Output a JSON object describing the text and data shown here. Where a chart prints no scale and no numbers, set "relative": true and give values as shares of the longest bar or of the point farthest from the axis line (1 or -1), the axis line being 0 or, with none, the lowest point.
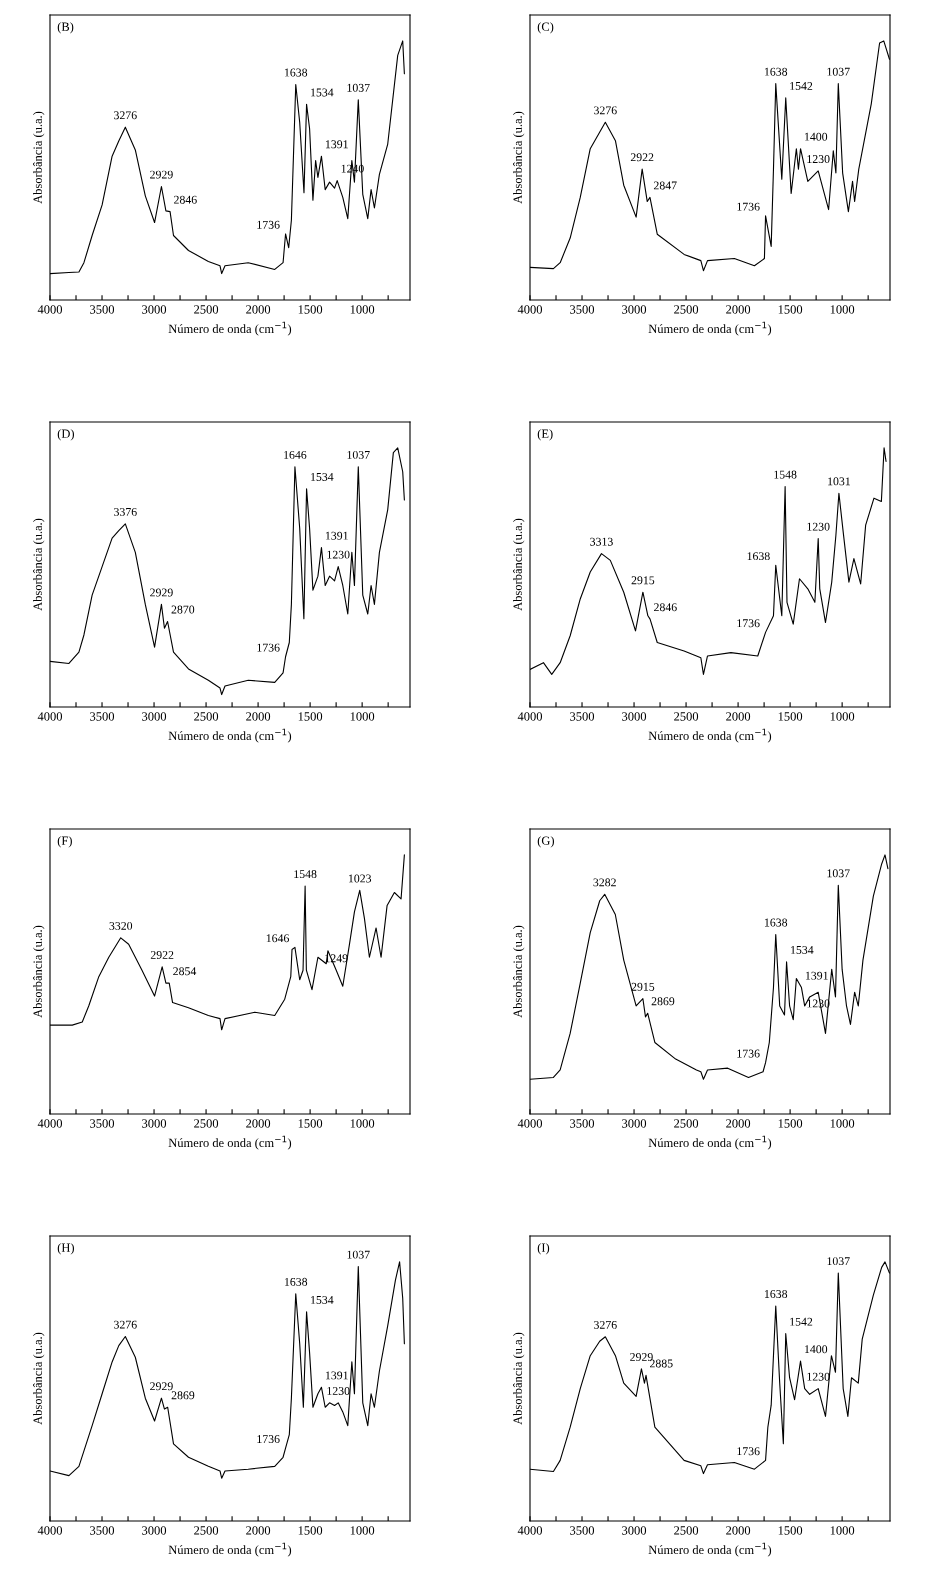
{
  "chart_data": [
    {
      "type": "line",
      "title": "(B)",
      "relative": true,
      "xlabel": "Número de onda (cm$^{−1}$)",
      "ylabel": "Absorbância (u.a.)",
      "xlim": [
        4000,
        540
      ],
      "xticks": [
        4000,
        {
          "value": 3750,
          "label": null
        },
        3500,
        {
          "value": 3250,
          "label": null
        },
        3000,
        {
          "value": 2750,
          "label": null
        },
        2500,
        {
          "value": 2250,
          "label": null
        },
        2000,
        {
          "value": 1750,
          "label": null
        },
        1500,
        {
          "value": 1250,
          "label": null
        },
        1000,
        {
          "value": 750,
          "label": null
        }
      ],
      "series": [
        {
          "color": "#000000",
          "x": [
            4000,
            3818,
            3722,
            3674,
            3595,
            3499,
            3403,
            3339,
            3276,
            3180,
            3084,
            2995,
            2929,
            2886,
            2846,
            2813,
            2669,
            2478,
            2366,
            2350,
            2318,
            2095,
            1840,
            1760,
            1736,
            1706,
            1680,
            1638,
            1600,
            1559,
            1534,
            1505,
            1473,
            1447,
            1425,
            1391,
            1355,
            1313,
            1265,
            1240,
            1186,
            1138,
            1099,
            1074,
            1037,
            994,
            946,
            914,
            882,
            834,
            754,
            658,
            610,
            594
          ],
          "values": [
            0.102,
            0.106,
            0.108,
            0.144,
            0.249,
            0.367,
            0.555,
            0.614,
            0.667,
            0.579,
            0.402,
            0.299,
            0.438,
            0.344,
            0.341,
            0.249,
            0.191,
            0.149,
            0.132,
            0.102,
            0.132,
            0.144,
            0.118,
            0.144,
            0.255,
            0.202,
            0.308,
            0.832,
            0.685,
            0.414,
            0.755,
            0.661,
            0.385,
            0.538,
            0.473,
            0.555,
            0.426,
            0.455,
            0.432,
            0.461,
            0.396,
            0.314,
            0.538,
            0.455,
            0.773,
            0.408,
            0.314,
            0.426,
            0.355,
            0.485,
            0.602,
            0.944,
            1.0,
            0.873
          ]
        }
      ],
      "annotations": [
        {
          "text": "3276",
          "x": 3276,
          "y": 0.667
        },
        {
          "text": "2929",
          "x": 2929,
          "y": 0.438
        },
        {
          "text": "2846",
          "x": 2846,
          "y": 0.341
        },
        {
          "text": "1736",
          "x": 1736,
          "y": 0.255
        },
        {
          "text": "1638",
          "x": 1638,
          "y": 0.832
        },
        {
          "text": "1534",
          "x": 1534,
          "y": 0.755
        },
        {
          "text": "1391",
          "x": 1391,
          "y": 0.555
        },
        {
          "text": "1240",
          "x": 1240,
          "y": 0.461
        },
        {
          "text": "1037",
          "x": 1037,
          "y": 0.773
        }
      ]
    },
    {
      "type": "line",
      "title": "(C)",
      "relative": true,
      "xlabel": "Número de onda (cm$^{−1}$)",
      "ylabel": "Absorbância (u.a.)",
      "xlim": [
        4000,
        540
      ],
      "xticks": [
        4000,
        {
          "value": 3750,
          "label": null
        },
        3500,
        {
          "value": 3250,
          "label": null
        },
        3000,
        {
          "value": 2750,
          "label": null
        },
        2500,
        {
          "value": 2250,
          "label": null
        },
        2000,
        {
          "value": 1750,
          "label": null
        },
        1500,
        {
          "value": 1250,
          "label": null
        },
        1000,
        {
          "value": 750,
          "label": null
        }
      ],
      "series": [
        {
          "color": "#000000",
          "x": [
            4000,
            3775,
            3710,
            3614,
            3517,
            3421,
            3276,
            3179,
            3099,
            2980,
            2922,
            2873,
            2847,
            2777,
            2519,
            2358,
            2333,
            2294,
            2036,
            1843,
            1747,
            1736,
            1682,
            1660,
            1638,
            1580,
            1542,
            1490,
            1440,
            1420,
            1400,
            1330,
            1230,
            1130,
            1085,
            1060,
            1037,
            995,
            940,
            900,
            880,
            840,
            720,
            640,
            600,
            545
          ],
          "values": [
            0.126,
            0.121,
            0.144,
            0.239,
            0.396,
            0.584,
            0.686,
            0.615,
            0.443,
            0.32,
            0.505,
            0.38,
            0.396,
            0.254,
            0.176,
            0.152,
            0.113,
            0.152,
            0.16,
            0.132,
            0.16,
            0.325,
            0.207,
            0.505,
            0.835,
            0.466,
            0.78,
            0.411,
            0.584,
            0.505,
            0.584,
            0.458,
            0.498,
            0.349,
            0.576,
            0.49,
            0.835,
            0.49,
            0.341,
            0.458,
            0.38,
            0.505,
            0.757,
            0.992,
            1.0,
            0.929
          ]
        }
      ],
      "annotations": [
        {
          "text": "3276",
          "x": 3276,
          "y": 0.686
        },
        {
          "text": "2922",
          "x": 2922,
          "y": 0.505
        },
        {
          "text": "2847",
          "x": 2847,
          "y": 0.396
        },
        {
          "text": "1736",
          "x": 1736,
          "y": 0.325
        },
        {
          "text": "1638",
          "x": 1638,
          "y": 0.835
        },
        {
          "text": "1542",
          "x": 1542,
          "y": 0.78
        },
        {
          "text": "1400",
          "x": 1400,
          "y": 0.584
        },
        {
          "text": "1230",
          "x": 1230,
          "y": 0.498
        },
        {
          "text": "1037",
          "x": 1037,
          "y": 0.835
        }
      ]
    },
    {
      "type": "line",
      "title": "(D)",
      "relative": true,
      "xlabel": "Número de onda (cm$^{−1}$)",
      "ylabel": "Absorbância (u.a.)",
      "xlim": [
        4000,
        540
      ],
      "xticks": [
        4000,
        {
          "value": 3750,
          "label": null
        },
        3500,
        {
          "value": 3250,
          "label": null
        },
        3000,
        {
          "value": 2750,
          "label": null
        },
        2500,
        {
          "value": 2250,
          "label": null
        },
        2000,
        {
          "value": 1750,
          "label": null
        },
        1500,
        {
          "value": 1250,
          "label": null
        },
        1000,
        {
          "value": 750,
          "label": null
        }
      ],
      "series": [
        {
          "color": "#000000",
          "x": [
            4000,
            3818,
            3722,
            3674,
            3595,
            3499,
            3403,
            3339,
            3276,
            3180,
            3084,
            2995,
            2929,
            2900,
            2870,
            2813,
            2669,
            2478,
            2366,
            2350,
            2318,
            2095,
            1840,
            1760,
            1736,
            1700,
            1680,
            1646,
            1600,
            1560,
            1534,
            1505,
            1473,
            1425,
            1391,
            1355,
            1313,
            1265,
            1230,
            1186,
            1138,
            1099,
            1074,
            1037,
            994,
            946,
            914,
            882,
            834,
            754,
            700,
            658,
            610,
            594
          ],
          "values": [
            0.176,
            0.168,
            0.212,
            0.278,
            0.432,
            0.542,
            0.652,
            0.681,
            0.707,
            0.597,
            0.396,
            0.231,
            0.396,
            0.304,
            0.33,
            0.212,
            0.147,
            0.103,
            0.073,
            0.048,
            0.081,
            0.103,
            0.095,
            0.132,
            0.194,
            0.249,
            0.396,
            0.927,
            0.689,
            0.341,
            0.842,
            0.689,
            0.451,
            0.505,
            0.615,
            0.469,
            0.505,
            0.487,
            0.542,
            0.469,
            0.359,
            0.597,
            0.469,
            0.927,
            0.432,
            0.359,
            0.469,
            0.396,
            0.597,
            0.762,
            0.982,
            1.0,
            0.908,
            0.799
          ]
        }
      ],
      "annotations": [
        {
          "text": "3376",
          "x": 3276,
          "y": 0.707
        },
        {
          "text": "2929",
          "x": 2929,
          "y": 0.396
        },
        {
          "text": "2870",
          "x": 2870,
          "y": 0.33
        },
        {
          "text": "1736",
          "x": 1736,
          "y": 0.194
        },
        {
          "text": "1646",
          "x": 1646,
          "y": 0.927
        },
        {
          "text": "1534",
          "x": 1534,
          "y": 0.842
        },
        {
          "text": "1391",
          "x": 1391,
          "y": 0.615
        },
        {
          "text": "1230",
          "x": 1230,
          "y": 0.542
        },
        {
          "text": "1037",
          "x": 1037,
          "y": 0.927
        }
      ]
    },
    {
      "type": "line",
      "title": "(E)",
      "relative": true,
      "xlabel": "Número de onda (cm$^{−1}$)",
      "ylabel": "Absorbância (u.a.)",
      "xlim": [
        4000,
        540
      ],
      "xticks": [
        4000,
        {
          "value": 3750,
          "label": null
        },
        3500,
        {
          "value": 3250,
          "label": null
        },
        3000,
        {
          "value": 2750,
          "label": null
        },
        2500,
        {
          "value": 2250,
          "label": null
        },
        2000,
        {
          "value": 1750,
          "label": null
        },
        1500,
        {
          "value": 1250,
          "label": null
        },
        1000,
        {
          "value": 750,
          "label": null
        }
      ],
      "series": [
        {
          "color": "#000000",
          "x": [
            4000,
            3871,
            3791,
            3710,
            3614,
            3517,
            3421,
            3313,
            3228,
            3099,
            2986,
            2915,
            2867,
            2846,
            2777,
            2519,
            2358,
            2333,
            2294,
            2069,
            1811,
            1736,
            1660,
            1638,
            1580,
            1548,
            1530,
            1470,
            1410,
            1330,
            1262,
            1230,
            1215,
            1160,
            1100,
            1060,
            1031,
            990,
            935,
            887,
            822,
            774,
            694,
            623,
            597,
            578
          ],
          "values": [
            0.145,
            0.171,
            0.126,
            0.171,
            0.275,
            0.417,
            0.521,
            0.592,
            0.566,
            0.443,
            0.294,
            0.443,
            0.352,
            0.339,
            0.249,
            0.216,
            0.19,
            0.126,
            0.197,
            0.21,
            0.197,
            0.288,
            0.352,
            0.547,
            0.352,
            0.851,
            0.404,
            0.32,
            0.495,
            0.456,
            0.404,
            0.65,
            0.456,
            0.326,
            0.482,
            0.663,
            0.825,
            0.676,
            0.482,
            0.573,
            0.475,
            0.702,
            0.806,
            0.793,
            1.0,
            0.948
          ]
        }
      ],
      "annotations": [
        {
          "text": "3313",
          "x": 3313,
          "y": 0.592
        },
        {
          "text": "2915",
          "x": 2915,
          "y": 0.443
        },
        {
          "text": "2846",
          "x": 2846,
          "y": 0.339
        },
        {
          "text": "1736",
          "x": 1736,
          "y": 0.288
        },
        {
          "text": "1638",
          "x": 1638,
          "y": 0.547
        },
        {
          "text": "1548",
          "x": 1548,
          "y": 0.851
        },
        {
          "text": "1230",
          "x": 1230,
          "y": 0.65
        },
        {
          "text": "1031",
          "x": 1031,
          "y": 0.825
        }
      ]
    },
    {
      "type": "line",
      "title": "(F)",
      "relative": true,
      "xlabel": "Número de onda (cm$^{−1}$)",
      "ylabel": "Absorbância (u.a.)",
      "xlim": [
        4000,
        540
      ],
      "xticks": [
        4000,
        {
          "value": 3750,
          "label": null
        },
        3500,
        {
          "value": 3250,
          "label": null
        },
        3000,
        {
          "value": 2750,
          "label": null
        },
        2500,
        {
          "value": 2250,
          "label": null
        },
        2000,
        {
          "value": 1750,
          "label": null
        },
        1500,
        {
          "value": 1250,
          "label": null
        },
        1000,
        {
          "value": 750,
          "label": null
        }
      ],
      "series": [
        {
          "color": "#000000",
          "x": [
            4000,
            3786,
            3690,
            3627,
            3531,
            3435,
            3320,
            3244,
            3116,
            2995,
            2922,
            2886,
            2854,
            2822,
            2669,
            2478,
            2366,
            2350,
            2318,
            2031,
            1840,
            1744,
            1686,
            1674,
            1646,
            1600,
            1568,
            1548,
            1536,
            1482,
            1425,
            1345,
            1329,
            1249,
            1186,
            1122,
            1074,
            1023,
            978,
            930,
            866,
            818,
            760,
            690,
            626,
            594
          ],
          "values": [
            0.343,
            0.343,
            0.355,
            0.418,
            0.53,
            0.605,
            0.68,
            0.655,
            0.555,
            0.455,
            0.568,
            0.505,
            0.505,
            0.43,
            0.41,
            0.38,
            0.368,
            0.325,
            0.368,
            0.393,
            0.38,
            0.443,
            0.53,
            0.635,
            0.643,
            0.518,
            0.555,
            0.88,
            0.555,
            0.48,
            0.605,
            0.58,
            0.63,
            0.555,
            0.493,
            0.655,
            0.78,
            0.863,
            0.755,
            0.605,
            0.718,
            0.605,
            0.805,
            0.855,
            0.83,
            1.0
          ]
        }
      ],
      "annotations": [
        {
          "text": "3320",
          "x": 3320,
          "y": 0.68
        },
        {
          "text": "2922",
          "x": 2922,
          "y": 0.568
        },
        {
          "text": "2854",
          "x": 2854,
          "y": 0.505
        },
        {
          "text": "1646",
          "x": 1646,
          "y": 0.643
        },
        {
          "text": "1548",
          "x": 1548,
          "y": 0.88
        },
        {
          "text": "1249",
          "x": 1249,
          "y": 0.555
        },
        {
          "text": "1023",
          "x": 1023,
          "y": 0.863
        }
      ]
    },
    {
      "type": "line",
      "title": "(G)",
      "relative": true,
      "xlabel": "Número de onda (cm$^{−1}$)",
      "ylabel": "Absorbância (u.a.)",
      "xlim": [
        4000,
        540
      ],
      "xticks": [
        4000,
        {
          "value": 3750,
          "label": null
        },
        3500,
        {
          "value": 3250,
          "label": null
        },
        3000,
        {
          "value": 2750,
          "label": null
        },
        2500,
        {
          "value": 2250,
          "label": null
        },
        2000,
        {
          "value": 1750,
          "label": null
        },
        1500,
        {
          "value": 1250,
          "label": null
        },
        1000,
        {
          "value": 750,
          "label": null
        }
      ],
      "series": [
        {
          "color": "#000000",
          "x": [
            4000,
            3775,
            3710,
            3614,
            3517,
            3421,
            3330,
            3282,
            3180,
            3099,
            2980,
            2915,
            2890,
            2869,
            2800,
            2600,
            2400,
            2358,
            2333,
            2294,
            2100,
            1900,
            1760,
            1736,
            1700,
            1660,
            1638,
            1600,
            1554,
            1534,
            1505,
            1470,
            1440,
            1391,
            1360,
            1312,
            1230,
            1160,
            1100,
            1064,
            1037,
            1000,
            958,
            920,
            880,
            845,
            800,
            700,
            620,
            588,
            560
          ],
          "values": [
            0.134,
            0.141,
            0.17,
            0.311,
            0.505,
            0.7,
            0.823,
            0.848,
            0.77,
            0.594,
            0.417,
            0.445,
            0.375,
            0.389,
            0.276,
            0.212,
            0.17,
            0.163,
            0.134,
            0.17,
            0.177,
            0.141,
            0.163,
            0.198,
            0.276,
            0.488,
            0.693,
            0.417,
            0.382,
            0.587,
            0.417,
            0.364,
            0.523,
            0.488,
            0.417,
            0.452,
            0.47,
            0.311,
            0.558,
            0.452,
            0.883,
            0.558,
            0.417,
            0.346,
            0.47,
            0.417,
            0.594,
            0.841,
            0.965,
            1.0,
            0.947
          ]
        }
      ],
      "annotations": [
        {
          "text": "3282",
          "x": 3282,
          "y": 0.848
        },
        {
          "text": "2915",
          "x": 2915,
          "y": 0.445
        },
        {
          "text": "2869",
          "x": 2869,
          "y": 0.389
        },
        {
          "text": "1736",
          "x": 1736,
          "y": 0.198
        },
        {
          "text": "1638",
          "x": 1638,
          "y": 0.693
        },
        {
          "text": "1534",
          "x": 1534,
          "y": 0.587
        },
        {
          "text": "1391",
          "x": 1391,
          "y": 0.488
        },
        {
          "text": "1230",
          "x": 1230,
          "y": 0.47
        },
        {
          "text": "1037",
          "x": 1037,
          "y": 0.883
        }
      ]
    },
    {
      "type": "line",
      "title": "(H)",
      "relative": true,
      "xlabel": "Número de onda (cm$^{−1}$)",
      "ylabel": "Absorbância (u.a.)",
      "xlim": [
        4000,
        540
      ],
      "xticks": [
        4000,
        {
          "value": 3750,
          "label": null
        },
        3500,
        {
          "value": 3250,
          "label": null
        },
        3000,
        {
          "value": 2750,
          "label": null
        },
        2500,
        {
          "value": 2250,
          "label": null
        },
        2000,
        {
          "value": 1750,
          "label": null
        },
        1500,
        {
          "value": 1250,
          "label": null
        },
        1000,
        {
          "value": 750,
          "label": null
        }
      ],
      "series": [
        {
          "color": "#000000",
          "x": [
            4000,
            3818,
            3722,
            3595,
            3499,
            3403,
            3339,
            3276,
            3180,
            3084,
            2995,
            2929,
            2900,
            2869,
            2813,
            2669,
            2478,
            2366,
            2350,
            2318,
            2095,
            1840,
            1760,
            1736,
            1700,
            1680,
            1638,
            1600,
            1565,
            1534,
            1505,
            1473,
            1425,
            1391,
            1355,
            1313,
            1265,
            1230,
            1186,
            1138,
            1099,
            1074,
            1037,
            994,
            946,
            914,
            882,
            834,
            754,
            680,
            640,
            610,
            594
          ],
          "values": [
            0.193,
            0.175,
            0.211,
            0.368,
            0.491,
            0.614,
            0.677,
            0.712,
            0.632,
            0.474,
            0.386,
            0.474,
            0.432,
            0.439,
            0.298,
            0.246,
            0.211,
            0.193,
            0.165,
            0.193,
            0.2,
            0.211,
            0.246,
            0.281,
            0.333,
            0.474,
            0.877,
            0.684,
            0.439,
            0.807,
            0.649,
            0.439,
            0.491,
            0.516,
            0.439,
            0.456,
            0.446,
            0.456,
            0.421,
            0.368,
            0.614,
            0.491,
            0.982,
            0.456,
            0.368,
            0.491,
            0.439,
            0.579,
            0.754,
            0.93,
            1.0,
            0.86,
            0.684
          ]
        }
      ],
      "annotations": [
        {
          "text": "3276",
          "x": 3276,
          "y": 0.712
        },
        {
          "text": "2929",
          "x": 2929,
          "y": 0.474
        },
        {
          "text": "2869",
          "x": 2869,
          "y": 0.439
        },
        {
          "text": "1736",
          "x": 1736,
          "y": 0.281
        },
        {
          "text": "1638",
          "x": 1638,
          "y": 0.877
        },
        {
          "text": "1534",
          "x": 1534,
          "y": 0.807
        },
        {
          "text": "1391",
          "x": 1391,
          "y": 0.516
        },
        {
          "text": "1230",
          "x": 1230,
          "y": 0.456
        },
        {
          "text": "1037",
          "x": 1037,
          "y": 0.982
        }
      ]
    },
    {
      "type": "line",
      "title": "(I)",
      "relative": true,
      "xlabel": "Número de onda (cm$^{−1}$)",
      "ylabel": "Absorbância (u.a.)",
      "xlim": [
        4000,
        540
      ],
      "xticks": [
        4000,
        {
          "value": 3750,
          "label": null
        },
        3500,
        {
          "value": 3250,
          "label": null
        },
        3000,
        {
          "value": 2750,
          "label": null
        },
        2500,
        {
          "value": 2250,
          "label": null
        },
        2000,
        {
          "value": 1750,
          "label": null
        },
        1500,
        {
          "value": 1250,
          "label": null
        },
        1000,
        {
          "value": 750,
          "label": null
        }
      ],
      "series": [
        {
          "color": "#000000",
          "x": [
            4000,
            3775,
            3710,
            3614,
            3517,
            3421,
            3330,
            3276,
            3179,
            3099,
            2980,
            2929,
            2900,
            2885,
            2800,
            2519,
            2358,
            2333,
            2294,
            2036,
            1843,
            1736,
            1714,
            1682,
            1638,
            1600,
            1565,
            1542,
            1505,
            1457,
            1400,
            1360,
            1312,
            1230,
            1160,
            1103,
            1064,
            1037,
            990,
            945,
            910,
            845,
            807,
            700,
            620,
            588,
            545
          ],
          "values": [
            0.2,
            0.191,
            0.234,
            0.362,
            0.511,
            0.638,
            0.694,
            0.711,
            0.638,
            0.532,
            0.481,
            0.587,
            0.532,
            0.562,
            0.362,
            0.234,
            0.213,
            0.183,
            0.217,
            0.226,
            0.2,
            0.234,
            0.362,
            0.447,
            0.83,
            0.532,
            0.298,
            0.723,
            0.553,
            0.468,
            0.617,
            0.511,
            0.489,
            0.511,
            0.404,
            0.638,
            0.574,
            0.957,
            0.511,
            0.404,
            0.553,
            0.532,
            0.702,
            0.872,
            0.979,
            1.0,
            0.957
          ]
        }
      ],
      "annotations": [
        {
          "text": "3276",
          "x": 3276,
          "y": 0.711
        },
        {
          "text": "2929",
          "x": 2929,
          "y": 0.587
        },
        {
          "text": "2885",
          "x": 2885,
          "y": 0.562
        },
        {
          "text": "1736",
          "x": 1736,
          "y": 0.234
        },
        {
          "text": "1638",
          "x": 1638,
          "y": 0.83
        },
        {
          "text": "1542",
          "x": 1542,
          "y": 0.723
        },
        {
          "text": "1400",
          "x": 1400,
          "y": 0.617
        },
        {
          "text": "1230",
          "x": 1230,
          "y": 0.511
        },
        {
          "text": "1037",
          "x": 1037,
          "y": 0.957
        }
      ]
    }
  ]
}
